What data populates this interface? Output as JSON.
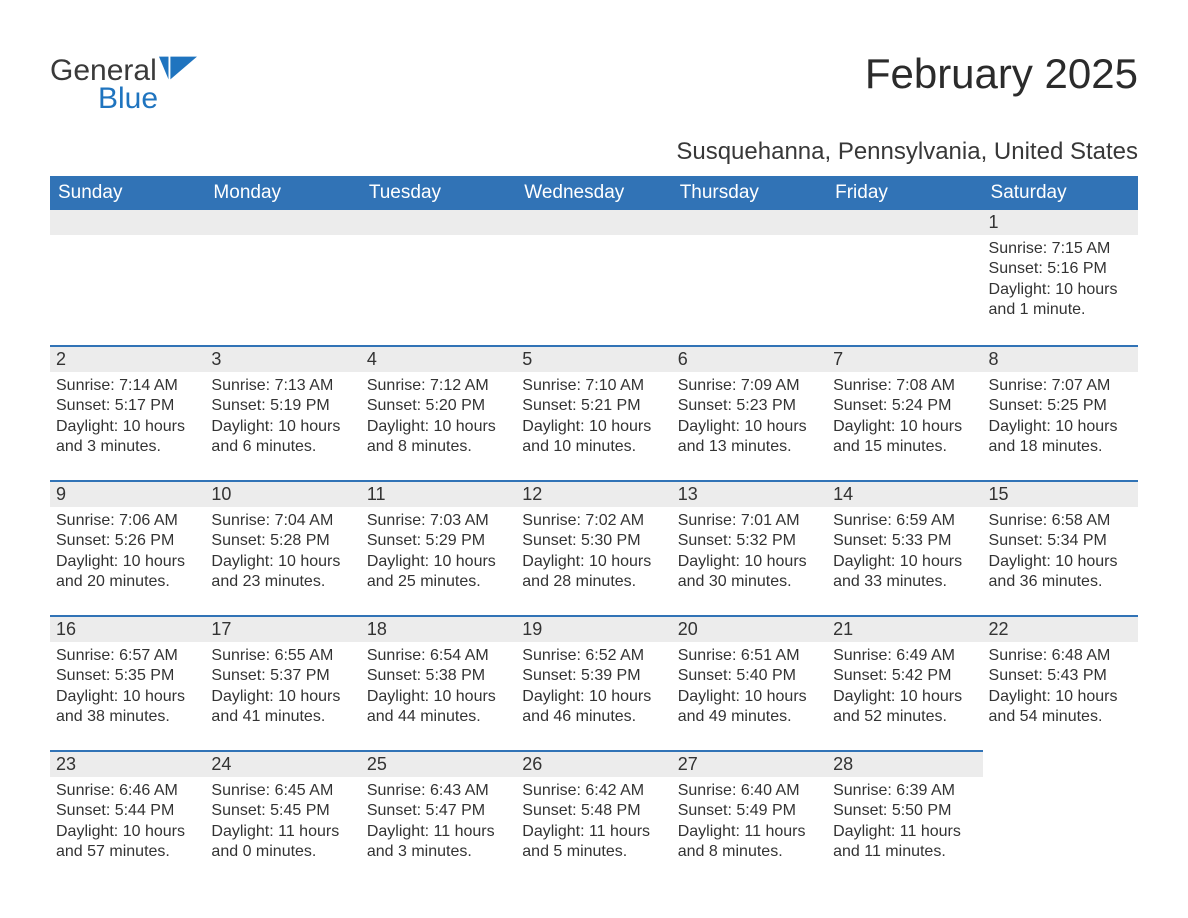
{
  "logo": {
    "general": "General",
    "blue": "Blue",
    "shape_color": "#1f74bf"
  },
  "title": "February 2025",
  "subtitle": "Susquehanna, Pennsylvania, United States",
  "colors": {
    "header_bg": "#3173b6",
    "header_text": "#ffffff",
    "daynum_bg": "#ececec",
    "border_top": "#3173b6",
    "body_text": "#333333",
    "background": "#ffffff"
  },
  "typography": {
    "title_fontsize": 42,
    "subtitle_fontsize": 24,
    "header_fontsize": 19,
    "daynum_fontsize": 18,
    "content_fontsize": 16
  },
  "weekdays": [
    "Sunday",
    "Monday",
    "Tuesday",
    "Wednesday",
    "Thursday",
    "Friday",
    "Saturday"
  ],
  "weeks": [
    [
      null,
      null,
      null,
      null,
      null,
      null,
      {
        "day": "1",
        "sunrise": "Sunrise: 7:15 AM",
        "sunset": "Sunset: 5:16 PM",
        "daylight": "Daylight: 10 hours and 1 minute."
      }
    ],
    [
      {
        "day": "2",
        "sunrise": "Sunrise: 7:14 AM",
        "sunset": "Sunset: 5:17 PM",
        "daylight": "Daylight: 10 hours and 3 minutes."
      },
      {
        "day": "3",
        "sunrise": "Sunrise: 7:13 AM",
        "sunset": "Sunset: 5:19 PM",
        "daylight": "Daylight: 10 hours and 6 minutes."
      },
      {
        "day": "4",
        "sunrise": "Sunrise: 7:12 AM",
        "sunset": "Sunset: 5:20 PM",
        "daylight": "Daylight: 10 hours and 8 minutes."
      },
      {
        "day": "5",
        "sunrise": "Sunrise: 7:10 AM",
        "sunset": "Sunset: 5:21 PM",
        "daylight": "Daylight: 10 hours and 10 minutes."
      },
      {
        "day": "6",
        "sunrise": "Sunrise: 7:09 AM",
        "sunset": "Sunset: 5:23 PM",
        "daylight": "Daylight: 10 hours and 13 minutes."
      },
      {
        "day": "7",
        "sunrise": "Sunrise: 7:08 AM",
        "sunset": "Sunset: 5:24 PM",
        "daylight": "Daylight: 10 hours and 15 minutes."
      },
      {
        "day": "8",
        "sunrise": "Sunrise: 7:07 AM",
        "sunset": "Sunset: 5:25 PM",
        "daylight": "Daylight: 10 hours and 18 minutes."
      }
    ],
    [
      {
        "day": "9",
        "sunrise": "Sunrise: 7:06 AM",
        "sunset": "Sunset: 5:26 PM",
        "daylight": "Daylight: 10 hours and 20 minutes."
      },
      {
        "day": "10",
        "sunrise": "Sunrise: 7:04 AM",
        "sunset": "Sunset: 5:28 PM",
        "daylight": "Daylight: 10 hours and 23 minutes."
      },
      {
        "day": "11",
        "sunrise": "Sunrise: 7:03 AM",
        "sunset": "Sunset: 5:29 PM",
        "daylight": "Daylight: 10 hours and 25 minutes."
      },
      {
        "day": "12",
        "sunrise": "Sunrise: 7:02 AM",
        "sunset": "Sunset: 5:30 PM",
        "daylight": "Daylight: 10 hours and 28 minutes."
      },
      {
        "day": "13",
        "sunrise": "Sunrise: 7:01 AM",
        "sunset": "Sunset: 5:32 PM",
        "daylight": "Daylight: 10 hours and 30 minutes."
      },
      {
        "day": "14",
        "sunrise": "Sunrise: 6:59 AM",
        "sunset": "Sunset: 5:33 PM",
        "daylight": "Daylight: 10 hours and 33 minutes."
      },
      {
        "day": "15",
        "sunrise": "Sunrise: 6:58 AM",
        "sunset": "Sunset: 5:34 PM",
        "daylight": "Daylight: 10 hours and 36 minutes."
      }
    ],
    [
      {
        "day": "16",
        "sunrise": "Sunrise: 6:57 AM",
        "sunset": "Sunset: 5:35 PM",
        "daylight": "Daylight: 10 hours and 38 minutes."
      },
      {
        "day": "17",
        "sunrise": "Sunrise: 6:55 AM",
        "sunset": "Sunset: 5:37 PM",
        "daylight": "Daylight: 10 hours and 41 minutes."
      },
      {
        "day": "18",
        "sunrise": "Sunrise: 6:54 AM",
        "sunset": "Sunset: 5:38 PM",
        "daylight": "Daylight: 10 hours and 44 minutes."
      },
      {
        "day": "19",
        "sunrise": "Sunrise: 6:52 AM",
        "sunset": "Sunset: 5:39 PM",
        "daylight": "Daylight: 10 hours and 46 minutes."
      },
      {
        "day": "20",
        "sunrise": "Sunrise: 6:51 AM",
        "sunset": "Sunset: 5:40 PM",
        "daylight": "Daylight: 10 hours and 49 minutes."
      },
      {
        "day": "21",
        "sunrise": "Sunrise: 6:49 AM",
        "sunset": "Sunset: 5:42 PM",
        "daylight": "Daylight: 10 hours and 52 minutes."
      },
      {
        "day": "22",
        "sunrise": "Sunrise: 6:48 AM",
        "sunset": "Sunset: 5:43 PM",
        "daylight": "Daylight: 10 hours and 54 minutes."
      }
    ],
    [
      {
        "day": "23",
        "sunrise": "Sunrise: 6:46 AM",
        "sunset": "Sunset: 5:44 PM",
        "daylight": "Daylight: 10 hours and 57 minutes."
      },
      {
        "day": "24",
        "sunrise": "Sunrise: 6:45 AM",
        "sunset": "Sunset: 5:45 PM",
        "daylight": "Daylight: 11 hours and 0 minutes."
      },
      {
        "day": "25",
        "sunrise": "Sunrise: 6:43 AM",
        "sunset": "Sunset: 5:47 PM",
        "daylight": "Daylight: 11 hours and 3 minutes."
      },
      {
        "day": "26",
        "sunrise": "Sunrise: 6:42 AM",
        "sunset": "Sunset: 5:48 PM",
        "daylight": "Daylight: 11 hours and 5 minutes."
      },
      {
        "day": "27",
        "sunrise": "Sunrise: 6:40 AM",
        "sunset": "Sunset: 5:49 PM",
        "daylight": "Daylight: 11 hours and 8 minutes."
      },
      {
        "day": "28",
        "sunrise": "Sunrise: 6:39 AM",
        "sunset": "Sunset: 5:50 PM",
        "daylight": "Daylight: 11 hours and 11 minutes."
      },
      null
    ]
  ]
}
